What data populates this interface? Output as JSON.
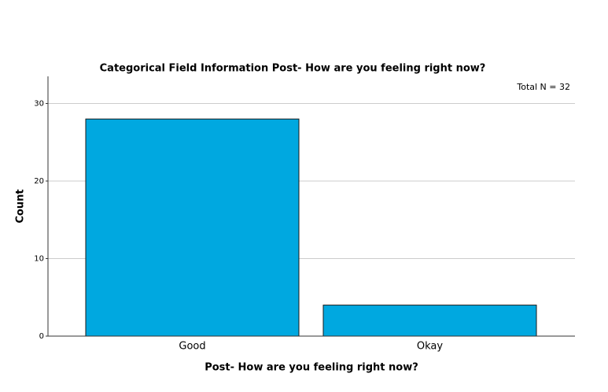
{
  "chart_data": {
    "type": "bar",
    "title": "Categorical Field Information Post- How are you feeling right now?",
    "annotation": "Total N =  32",
    "x_label": "Post- How are you feeling right now?",
    "y_label": "Count",
    "categories": [
      "Good",
      "Okay"
    ],
    "values": [
      28,
      4
    ],
    "color": "#00a8e0",
    "ylim": [
      0,
      33.5
    ],
    "yticks": [
      0,
      10,
      20,
      30
    ],
    "grid": true
  }
}
